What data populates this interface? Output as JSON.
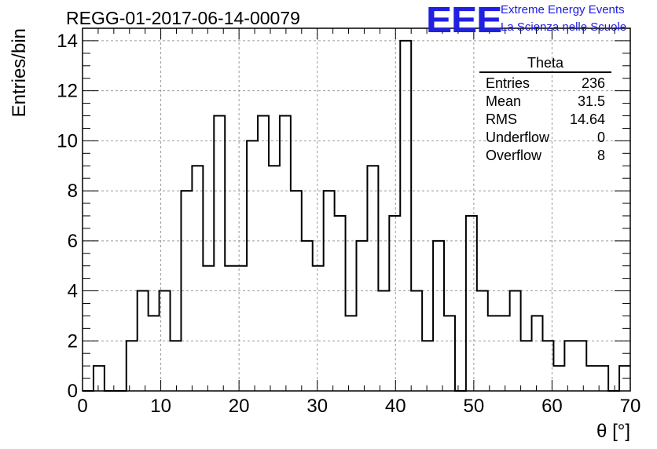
{
  "title": "REGG-01-2017-06-14-00079",
  "logo": {
    "mark": "EEE",
    "line1": "Extreme Energy Events",
    "line2": "La Scienza nelle Scuole",
    "color": "#2020e0"
  },
  "stats": {
    "title": "Theta",
    "rows": [
      {
        "label": "Entries",
        "value": "236"
      },
      {
        "label": "Mean",
        "value": "31.5"
      },
      {
        "label": "RMS",
        "value": "14.64"
      },
      {
        "label": "Underflow",
        "value": "0"
      },
      {
        "label": "Overflow",
        "value": "8"
      }
    ]
  },
  "chart_data": {
    "type": "histogram",
    "xlabel": "θ [°]",
    "ylabel": "Entries/bin",
    "xlim": [
      0,
      70
    ],
    "ylim": [
      0,
      14.5
    ],
    "xticks": [
      0,
      10,
      20,
      30,
      40,
      50,
      60,
      70
    ],
    "yticks": [
      0,
      2,
      4,
      6,
      8,
      10,
      12,
      14
    ],
    "grid": true,
    "bin_width": 1.4,
    "bin_start": 0,
    "counts": [
      0,
      1,
      0,
      0,
      2,
      4,
      3,
      4,
      2,
      8,
      9,
      5,
      11,
      5,
      5,
      10,
      11,
      9,
      11,
      8,
      6,
      5,
      8,
      7,
      3,
      6,
      9,
      4,
      7,
      14,
      4,
      2,
      6,
      3,
      0,
      7,
      4,
      3,
      3,
      4,
      2,
      3,
      2,
      1,
      2,
      2,
      1,
      1,
      0,
      1
    ]
  }
}
